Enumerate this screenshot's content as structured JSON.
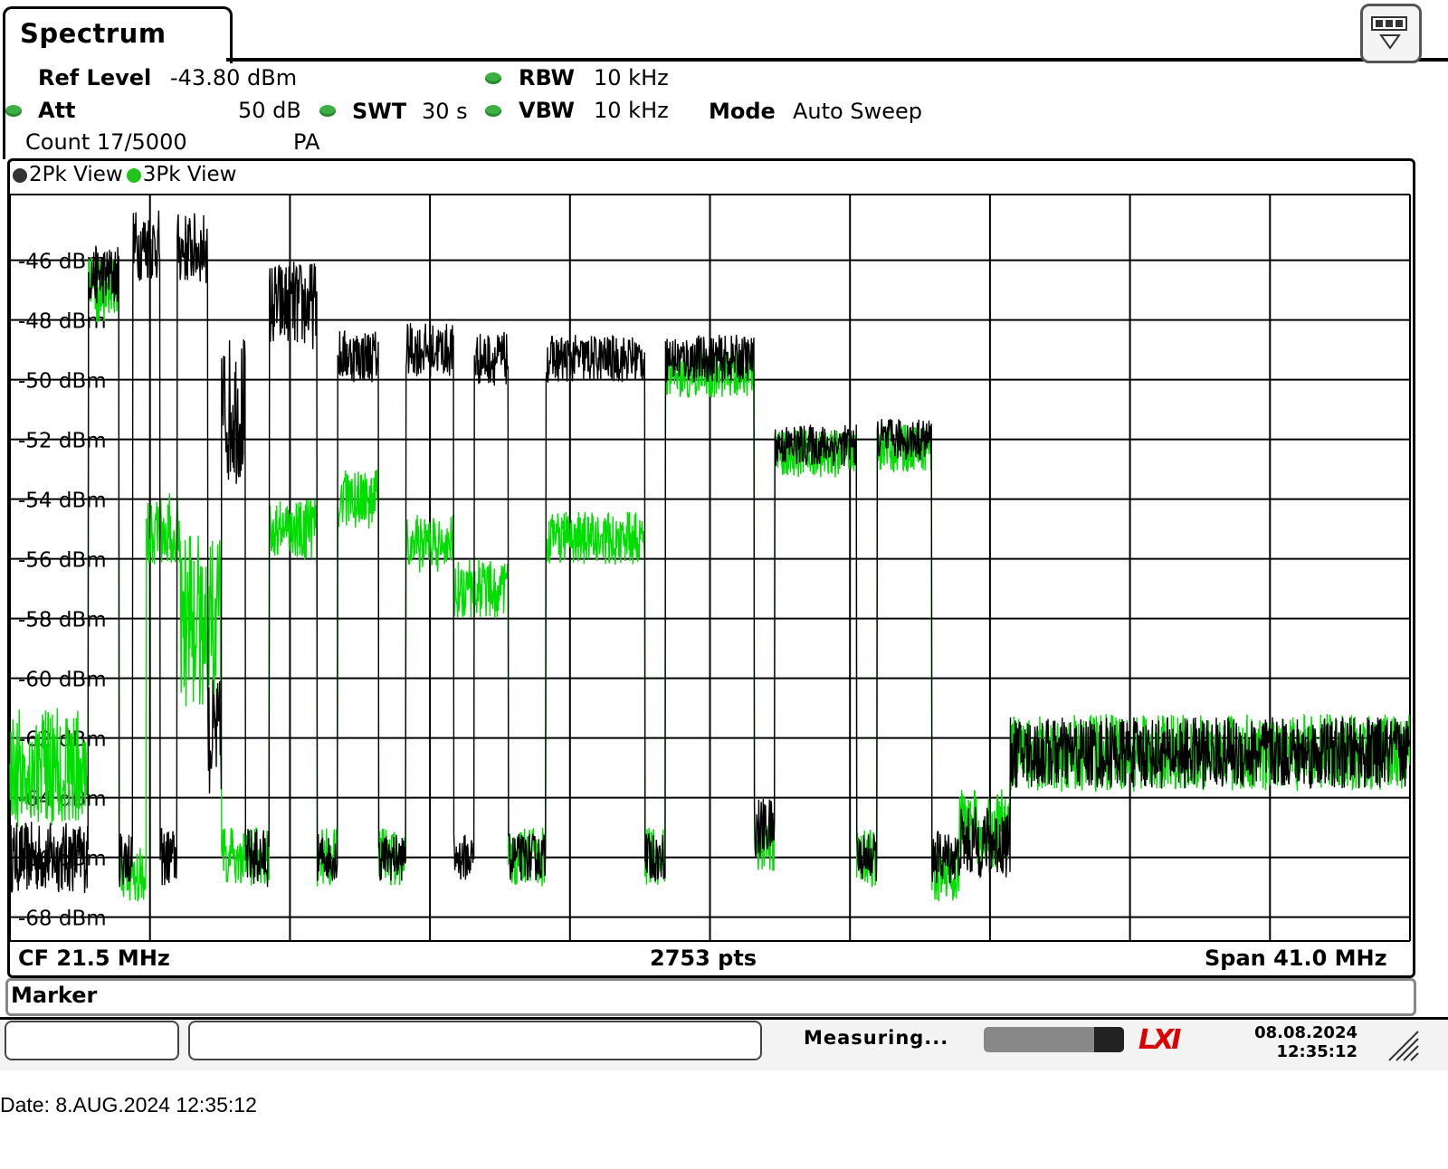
{
  "tab": {
    "title": "Spectrum"
  },
  "settings": {
    "ref_level_label": "Ref Level",
    "ref_level_value": "-43.80 dBm",
    "att_label": "Att",
    "att_value": "50 dB",
    "swt_label": "SWT",
    "swt_value": "30 s",
    "rbw_label": "RBW",
    "rbw_value": "10 kHz",
    "vbw_label": "VBW",
    "vbw_value": "10 kHz",
    "mode_label": "Mode",
    "mode_value": "Auto Sweep",
    "count": "Count 17/5000",
    "pa": "PA"
  },
  "legend": [
    {
      "label": "2Pk View",
      "color": "#000000"
    },
    {
      "label": "3Pk View",
      "color": "#00dd00"
    }
  ],
  "footer": {
    "cf": "CF 21.5 MHz",
    "pts": "2753 pts",
    "span": "Span 41.0 MHz"
  },
  "marker_label": "Marker",
  "status": {
    "measuring": "Measuring...",
    "logo": "LXI",
    "date": "08.08.2024",
    "time": "12:35:12"
  },
  "date_line": "Date: 8.AUG.2024  12:35:12",
  "chart_data": {
    "type": "line",
    "x_unit": "MHz",
    "x_range": [
      1.0,
      42.0
    ],
    "ylim": [
      -68.8,
      -43.8
    ],
    "yticks": [
      -46,
      -48,
      -50,
      -52,
      -54,
      -56,
      -58,
      -60,
      -62,
      -64,
      -66,
      -68
    ],
    "ytick_labels": [
      "-46 dBm",
      "-48 dBm",
      "-50 dBm",
      "-52 dBm",
      "-54 dBm",
      "-56 dBm",
      "-58 dBm",
      "-60 dBm",
      "-62 dBm",
      "-64 dBm",
      "-66 dBm",
      "-68 dBm"
    ],
    "grid": true,
    "vertical_divisions": 10,
    "series": [
      {
        "name": "2Pk View",
        "color": "#000000",
        "segments": [
          {
            "x0": 1.0,
            "x1": 3.3,
            "level": -66.0,
            "noise": 1.2
          },
          {
            "x0": 3.3,
            "x1": 4.2,
            "level": -46.5,
            "noise": 1.0
          },
          {
            "x0": 4.2,
            "x1": 4.6,
            "level": -66.0,
            "noise": 1.0
          },
          {
            "x0": 4.6,
            "x1": 5.4,
            "level": -45.5,
            "noise": 1.2
          },
          {
            "x0": 5.4,
            "x1": 5.9,
            "level": -66.0,
            "noise": 1.0
          },
          {
            "x0": 5.9,
            "x1": 6.8,
            "level": -45.6,
            "noise": 1.2
          },
          {
            "x0": 6.8,
            "x1": 7.2,
            "level": -62.0,
            "noise": 2.0
          },
          {
            "x0": 7.2,
            "x1": 7.9,
            "level": -51.0,
            "noise": 2.5
          },
          {
            "x0": 7.9,
            "x1": 8.6,
            "level": -66.0,
            "noise": 1.0
          },
          {
            "x0": 8.6,
            "x1": 10.0,
            "level": -47.5,
            "noise": 1.5
          },
          {
            "x0": 10.0,
            "x1": 10.6,
            "level": -66.0,
            "noise": 0.8
          },
          {
            "x0": 10.6,
            "x1": 11.8,
            "level": -49.2,
            "noise": 0.9
          },
          {
            "x0": 11.8,
            "x1": 12.6,
            "level": -66.0,
            "noise": 0.8
          },
          {
            "x0": 12.6,
            "x1": 14.0,
            "level": -49.0,
            "noise": 0.9
          },
          {
            "x0": 14.0,
            "x1": 14.6,
            "level": -66.0,
            "noise": 0.8
          },
          {
            "x0": 14.6,
            "x1": 15.6,
            "level": -49.3,
            "noise": 0.9
          },
          {
            "x0": 15.6,
            "x1": 16.7,
            "level": -66.0,
            "noise": 0.8
          },
          {
            "x0": 16.7,
            "x1": 18.4,
            "level": -49.3,
            "noise": 0.8
          },
          {
            "x0": 18.4,
            "x1": 19.6,
            "level": -49.3,
            "noise": 0.8
          },
          {
            "x0": 19.6,
            "x1": 20.2,
            "level": -66.0,
            "noise": 0.8
          },
          {
            "x0": 20.2,
            "x1": 22.8,
            "level": -49.3,
            "noise": 0.8
          },
          {
            "x0": 22.8,
            "x1": 23.4,
            "level": -65.0,
            "noise": 1.0
          },
          {
            "x0": 23.4,
            "x1": 25.8,
            "level": -52.2,
            "noise": 0.7
          },
          {
            "x0": 25.8,
            "x1": 26.4,
            "level": -66.0,
            "noise": 0.8
          },
          {
            "x0": 26.4,
            "x1": 28.0,
            "level": -52.0,
            "noise": 0.7
          },
          {
            "x0": 28.0,
            "x1": 28.8,
            "level": -66.0,
            "noise": 0.9
          },
          {
            "x0": 28.8,
            "x1": 30.3,
            "level": -65.5,
            "noise": 1.2
          },
          {
            "x0": 30.3,
            "x1": 42.0,
            "level": -62.5,
            "noise": 1.2
          }
        ]
      },
      {
        "name": "3Pk View",
        "color": "#00dd00",
        "segments": [
          {
            "x0": 1.0,
            "x1": 3.3,
            "level": -63.0,
            "noise": 2.0
          },
          {
            "x0": 3.3,
            "x1": 4.2,
            "level": -47.0,
            "noise": 1.2
          },
          {
            "x0": 4.2,
            "x1": 5.0,
            "level": -66.5,
            "noise": 1.0
          },
          {
            "x0": 5.0,
            "x1": 6.0,
            "level": -55.0,
            "noise": 1.2
          },
          {
            "x0": 6.0,
            "x1": 7.2,
            "level": -58.0,
            "noise": 3.0
          },
          {
            "x0": 7.2,
            "x1": 8.6,
            "level": -66.0,
            "noise": 1.0
          },
          {
            "x0": 8.6,
            "x1": 10.0,
            "level": -55.0,
            "noise": 1.0
          },
          {
            "x0": 10.0,
            "x1": 10.6,
            "level": -66.0,
            "noise": 1.0
          },
          {
            "x0": 10.6,
            "x1": 11.8,
            "level": -54.0,
            "noise": 1.0
          },
          {
            "x0": 11.8,
            "x1": 12.6,
            "level": -66.0,
            "noise": 1.0
          },
          {
            "x0": 12.6,
            "x1": 14.0,
            "level": -55.5,
            "noise": 1.0
          },
          {
            "x0": 14.0,
            "x1": 15.6,
            "level": -57.0,
            "noise": 1.0
          },
          {
            "x0": 15.6,
            "x1": 16.7,
            "level": -66.0,
            "noise": 1.0
          },
          {
            "x0": 16.7,
            "x1": 19.6,
            "level": -55.3,
            "noise": 0.9
          },
          {
            "x0": 19.6,
            "x1": 20.2,
            "level": -66.0,
            "noise": 1.0
          },
          {
            "x0": 20.2,
            "x1": 22.8,
            "level": -49.8,
            "noise": 0.8
          },
          {
            "x0": 22.8,
            "x1": 23.4,
            "level": -65.5,
            "noise": 1.0
          },
          {
            "x0": 23.4,
            "x1": 25.8,
            "level": -52.5,
            "noise": 0.8
          },
          {
            "x0": 25.8,
            "x1": 26.4,
            "level": -66.0,
            "noise": 1.0
          },
          {
            "x0": 26.4,
            "x1": 28.0,
            "level": -52.3,
            "noise": 0.8
          },
          {
            "x0": 28.0,
            "x1": 28.8,
            "level": -66.5,
            "noise": 1.0
          },
          {
            "x0": 28.8,
            "x1": 30.3,
            "level": -65.0,
            "noise": 1.4
          },
          {
            "x0": 30.3,
            "x1": 42.0,
            "level": -62.5,
            "noise": 1.3
          }
        ]
      }
    ]
  }
}
